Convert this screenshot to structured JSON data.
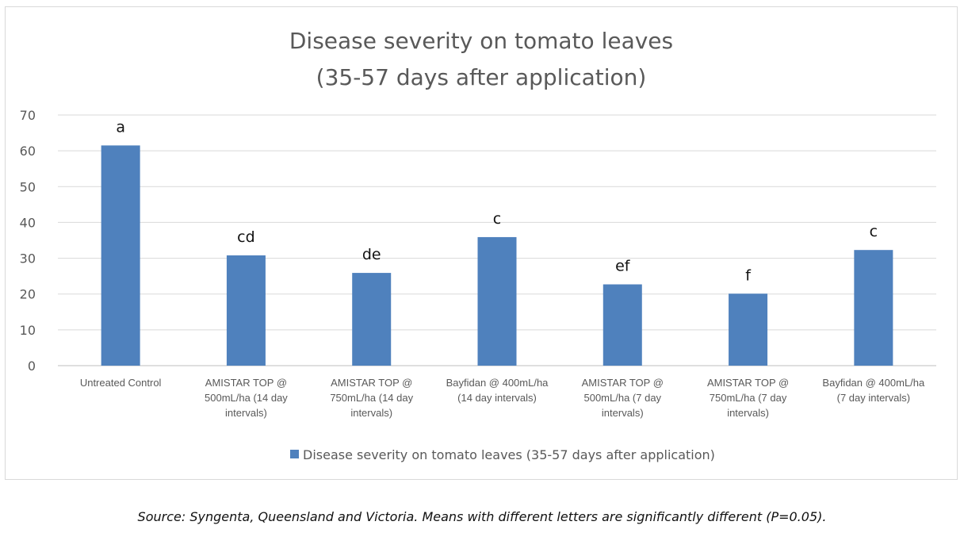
{
  "chart_data": {
    "type": "bar",
    "title": [
      "Disease severity on tomato leaves",
      "(35-57 days after application)"
    ],
    "categories": [
      [
        "Untreated Control"
      ],
      [
        "AMISTAR TOP @",
        "500mL/ha (14 day",
        "intervals)"
      ],
      [
        "AMISTAR TOP @",
        "750mL/ha (14 day",
        "intervals)"
      ],
      [
        "Bayfidan @ 400mL/ha",
        "(14 day intervals)"
      ],
      [
        "AMISTAR TOP @",
        "500mL/ha (7 day",
        "intervals)"
      ],
      [
        "AMISTAR TOP @",
        "750mL/ha (7 day",
        "intervals)"
      ],
      [
        "Bayfidan @ 400mL/ha",
        "(7 day intervals)"
      ]
    ],
    "series": [
      {
        "name": "Disease severity on tomato leaves (35-57 days after application)",
        "values": [
          61.5,
          30.8,
          25.9,
          35.9,
          22.7,
          20.1,
          32.3
        ],
        "annotations": [
          "a",
          "cd",
          "de",
          "c",
          "ef",
          "f",
          "c"
        ],
        "color": "#4f81bd"
      }
    ],
    "xlabel": "",
    "ylabel": "",
    "ylim": [
      0,
      70
    ],
    "yticks": [
      0,
      10,
      20,
      30,
      40,
      50,
      60,
      70
    ],
    "grid": true,
    "legend": "bottom"
  },
  "source_note": "Source: Syngenta, Queensland and Victoria. Means with different letters are significantly different (P=0.05)."
}
